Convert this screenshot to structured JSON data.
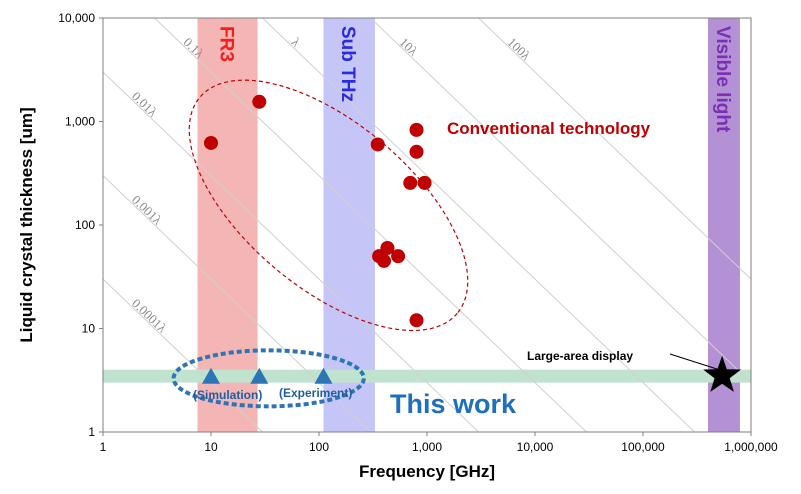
{
  "chart_data": {
    "type": "scatter",
    "xlabel": "Frequency [GHz]",
    "ylabel": "Liquid crystal thickness [um]",
    "xscale": "log",
    "yscale": "log",
    "xlim": [
      1,
      1000000
    ],
    "ylim": [
      1,
      10000
    ],
    "x_tick_labels": [
      "1",
      "10",
      "100",
      "1,000",
      "10,000",
      "100,000",
      "1,000,000"
    ],
    "x_tick_values": [
      1,
      10,
      100,
      1000,
      10000,
      100000,
      1000000
    ],
    "y_tick_labels": [
      "1",
      "10",
      "100",
      "1,000",
      "10,000"
    ],
    "y_tick_values": [
      1,
      10,
      100,
      1000,
      10000
    ],
    "bands": [
      {
        "label": "FR3",
        "x_range": [
          7.5,
          27
        ],
        "color": "#f4b5b5",
        "label_color": "#ff1a1a"
      },
      {
        "label": "Sub THz",
        "x_range": [
          110,
          330
        ],
        "color": "#c5c5f7",
        "label_color": "#2a2ae0"
      },
      {
        "label": "Visible light",
        "x_range": [
          400000,
          790000
        ],
        "color": "#b490d4",
        "label_color": "#7a2fb4"
      }
    ],
    "wavelength_lines": [
      {
        "label": "0.0001λ",
        "fraction": 0.0001
      },
      {
        "label": "0.001λ",
        "fraction": 0.001
      },
      {
        "label": "0.01λ",
        "fraction": 0.01
      },
      {
        "label": "0.1λ",
        "fraction": 0.1
      },
      {
        "label": "λ",
        "fraction": 1
      },
      {
        "label": "10λ",
        "fraction": 10
      },
      {
        "label": "100λ",
        "fraction": 100
      }
    ],
    "series": [
      {
        "name": "Conventional technology",
        "marker": "circle",
        "color": "#c00000",
        "points": [
          {
            "x": 10,
            "y": 620
          },
          {
            "x": 28,
            "y": 1550
          },
          {
            "x": 350,
            "y": 600
          },
          {
            "x": 800,
            "y": 830
          },
          {
            "x": 800,
            "y": 510
          },
          {
            "x": 700,
            "y": 255
          },
          {
            "x": 950,
            "y": 255
          },
          {
            "x": 430,
            "y": 60
          },
          {
            "x": 360,
            "y": 50
          },
          {
            "x": 400,
            "y": 45
          },
          {
            "x": 540,
            "y": 50
          },
          {
            "x": 800,
            "y": 12
          }
        ]
      },
      {
        "name": "This work",
        "marker": "triangle",
        "color": "#2e75b6",
        "points": [
          {
            "x": 10,
            "y": 3.5
          },
          {
            "x": 28,
            "y": 3.5
          },
          {
            "x": 110,
            "y": 3.5
          }
        ]
      },
      {
        "name": "Large-area display",
        "marker": "star",
        "color": "#000000",
        "points": [
          {
            "x": 540000,
            "y": 3.5
          }
        ]
      }
    ],
    "this_work_band": {
      "y_range": [
        3.0,
        4.0
      ],
      "color": "#bfe3cf"
    },
    "annotations": {
      "conventional": "Conventional technology",
      "this_work": "This work",
      "simulation": "(Simulation)",
      "experiment": "(Experiment)",
      "large_area": "Large-area display"
    },
    "grid": false,
    "legend": "none"
  }
}
